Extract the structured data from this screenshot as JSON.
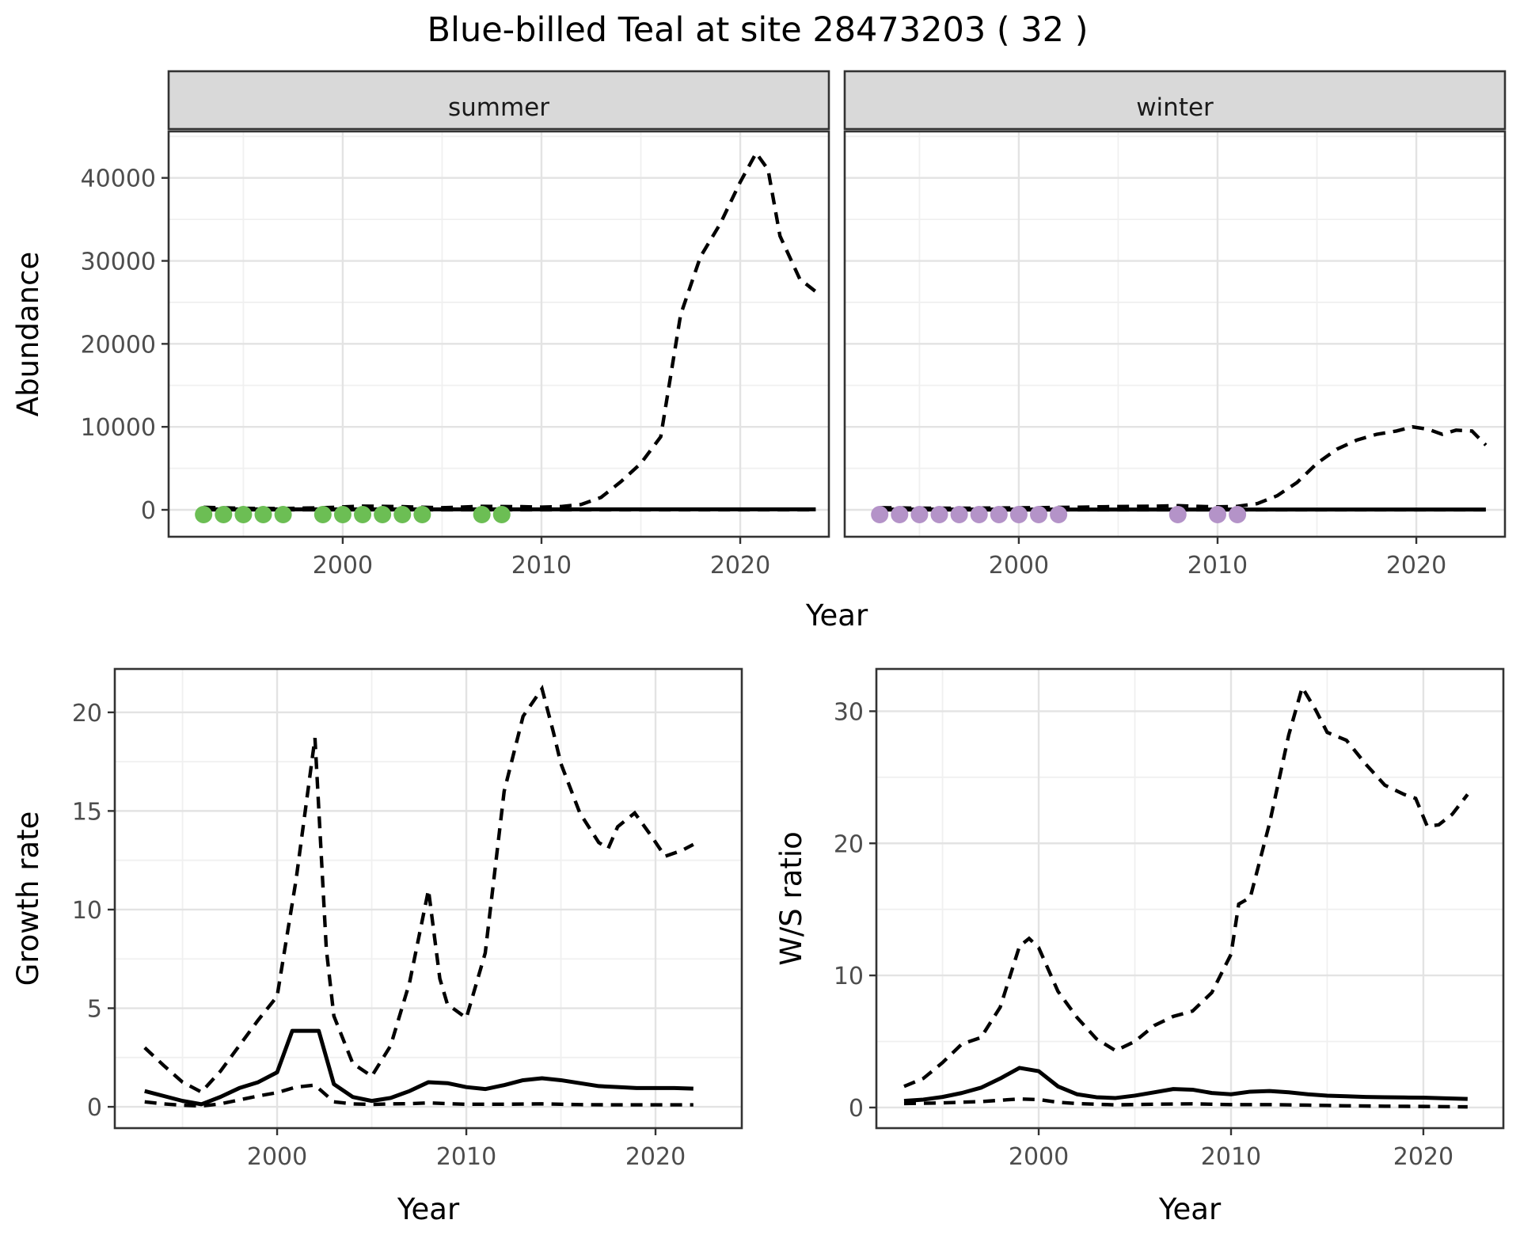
{
  "title": "Blue-billed Teal at site 28473203 ( 32 )",
  "colors": {
    "summer_point": "#6CBE54",
    "winter_point": "#B493C8",
    "line": "#000000",
    "panel_border": "#333333",
    "grid_major": "#E3E3E3",
    "grid_minor": "#F0F0F0",
    "strip_bg": "#D9D9D9",
    "tick_text": "#4D4D4D"
  },
  "chart_data": {
    "type": "line",
    "title": "Blue-billed Teal at site 28473203 ( 32 )",
    "top": {
      "xlabel": "Year",
      "ylabel": "Abundance",
      "x_major": [
        2000,
        2010,
        2020
      ],
      "x_minor": [
        1995,
        2005,
        2015
      ],
      "y_major": [
        0,
        10000,
        20000,
        30000,
        40000
      ],
      "y_minor": [
        5000,
        15000,
        25000,
        35000,
        45000
      ],
      "xlim": [
        1991.24,
        2024.46
      ],
      "ylim": [
        -3244,
        45600
      ],
      "legend": "none",
      "facets": [
        {
          "label": "summer",
          "point_color": "#6CBE54",
          "observed_years": [
            1993,
            1994,
            1995,
            1996,
            1997,
            1999,
            2000,
            2001,
            2002,
            2003,
            2004,
            2007,
            2008
          ],
          "observed_values": [
            0,
            0,
            0,
            0,
            0,
            0,
            0,
            0,
            0,
            0,
            0,
            0,
            0
          ],
          "fit_solid": [
            [
              1993,
              60
            ],
            [
              2023.8,
              60
            ]
          ],
          "ci_lower": [
            [
              1993,
              10
            ],
            [
              2023.8,
              10
            ]
          ],
          "ci_upper": [
            [
              1993,
              300
            ],
            [
              1995,
              180
            ],
            [
              1997,
              160
            ],
            [
              1999,
              250
            ],
            [
              2001,
              450
            ],
            [
              2003,
              380
            ],
            [
              2005,
              250
            ],
            [
              2007,
              420
            ],
            [
              2009,
              380
            ],
            [
              2010,
              330
            ],
            [
              2011,
              400
            ],
            [
              2012,
              650
            ],
            [
              2013,
              1500
            ],
            [
              2014,
              3400
            ],
            [
              2015,
              5600
            ],
            [
              2016,
              8800
            ],
            [
              2017,
              23500
            ],
            [
              2018,
              30500
            ],
            [
              2019,
              34500
            ],
            [
              2020,
              39500
            ],
            [
              2020.8,
              43000
            ],
            [
              2021.4,
              41000
            ],
            [
              2022,
              33000
            ],
            [
              2023,
              27800
            ],
            [
              2023.8,
              26300
            ]
          ]
        },
        {
          "label": "winter",
          "point_color": "#B493C8",
          "observed_years": [
            1993,
            1994,
            1995,
            1996,
            1997,
            1998,
            1999,
            2000,
            2001,
            2002,
            2008,
            2010,
            2011
          ],
          "observed_values": [
            0,
            0,
            0,
            0,
            0,
            0,
            0,
            0,
            0,
            0,
            0,
            0,
            0
          ],
          "fit_solid": [
            [
              1993,
              40
            ],
            [
              2023.5,
              40
            ]
          ],
          "ci_lower": [
            [
              1993,
              5
            ],
            [
              2023.5,
              5
            ]
          ],
          "ci_upper": [
            [
              1993,
              260
            ],
            [
              1995,
              200
            ],
            [
              1997,
              190
            ],
            [
              1999,
              220
            ],
            [
              2001,
              260
            ],
            [
              2003,
              320
            ],
            [
              2005,
              400
            ],
            [
              2007,
              450
            ],
            [
              2008,
              500
            ],
            [
              2009,
              420
            ],
            [
              2010,
              360
            ],
            [
              2011,
              420
            ],
            [
              2012,
              750
            ],
            [
              2013,
              1700
            ],
            [
              2014,
              3300
            ],
            [
              2015,
              5600
            ],
            [
              2016,
              7300
            ],
            [
              2017,
              8400
            ],
            [
              2018,
              9100
            ],
            [
              2019,
              9500
            ],
            [
              2019.8,
              10000
            ],
            [
              2020.6,
              9700
            ],
            [
              2021.3,
              9100
            ],
            [
              2022,
              9600
            ],
            [
              2022.8,
              9500
            ],
            [
              2023.5,
              7800
            ]
          ]
        }
      ]
    },
    "growth": {
      "xlabel": "Year",
      "ylabel": "Growth rate",
      "x_major": [
        2000,
        2010,
        2020
      ],
      "x_minor": [
        1995,
        2005,
        2015
      ],
      "y_major": [
        0,
        5,
        10,
        15,
        20
      ],
      "y_minor": [
        2.5,
        7.5,
        12.5,
        17.5
      ],
      "xlim": [
        1991.42,
        2024.56
      ],
      "ylim": [
        -1.08,
        22.2
      ],
      "fit_solid": [
        [
          1993,
          0.8
        ],
        [
          1994,
          0.55
        ],
        [
          1995,
          0.3
        ],
        [
          1996,
          0.13
        ],
        [
          1997,
          0.5
        ],
        [
          1998,
          0.95
        ],
        [
          1999,
          1.25
        ],
        [
          2000,
          1.75
        ],
        [
          2000.8,
          3.85
        ],
        [
          2002.2,
          3.85
        ],
        [
          2003,
          1.15
        ],
        [
          2004,
          0.5
        ],
        [
          2005,
          0.3
        ],
        [
          2006,
          0.45
        ],
        [
          2007,
          0.8
        ],
        [
          2008,
          1.25
        ],
        [
          2009,
          1.2
        ],
        [
          2010,
          1.0
        ],
        [
          2011,
          0.9
        ],
        [
          2012,
          1.1
        ],
        [
          2013,
          1.35
        ],
        [
          2014,
          1.45
        ],
        [
          2015,
          1.35
        ],
        [
          2016,
          1.2
        ],
        [
          2017,
          1.05
        ],
        [
          2018,
          1.0
        ],
        [
          2019,
          0.95
        ],
        [
          2020,
          0.95
        ],
        [
          2021,
          0.95
        ],
        [
          2022,
          0.92
        ]
      ],
      "ci_lower": [
        [
          1993,
          0.25
        ],
        [
          1994,
          0.15
        ],
        [
          1995,
          0.08
        ],
        [
          1996,
          0.04
        ],
        [
          1997,
          0.15
        ],
        [
          1998,
          0.35
        ],
        [
          1999,
          0.55
        ],
        [
          2000,
          0.72
        ],
        [
          2001,
          1.0
        ],
        [
          2002,
          1.1
        ],
        [
          2003,
          0.25
        ],
        [
          2004,
          0.15
        ],
        [
          2005,
          0.12
        ],
        [
          2006,
          0.15
        ],
        [
          2007,
          0.16
        ],
        [
          2008,
          0.2
        ],
        [
          2009,
          0.16
        ],
        [
          2010,
          0.13
        ],
        [
          2012,
          0.13
        ],
        [
          2014,
          0.15
        ],
        [
          2016,
          0.11
        ],
        [
          2018,
          0.1
        ],
        [
          2020,
          0.1
        ],
        [
          2022,
          0.1
        ]
      ],
      "ci_upper": [
        [
          1993,
          3.0
        ],
        [
          1994,
          2.1
        ],
        [
          1995,
          1.25
        ],
        [
          1996,
          0.75
        ],
        [
          1997,
          1.8
        ],
        [
          1998,
          3.1
        ],
        [
          1999,
          4.4
        ],
        [
          2000,
          5.6
        ],
        [
          2001,
          11.5
        ],
        [
          2002,
          18.7
        ],
        [
          2002.6,
          8.0
        ],
        [
          2003,
          4.6
        ],
        [
          2004,
          2.2
        ],
        [
          2005,
          1.55
        ],
        [
          2006,
          3.1
        ],
        [
          2007,
          6.3
        ],
        [
          2008,
          11.0
        ],
        [
          2008.6,
          6.5
        ],
        [
          2009,
          5.2
        ],
        [
          2010,
          4.5
        ],
        [
          2011,
          7.8
        ],
        [
          2012,
          16.0
        ],
        [
          2013,
          19.8
        ],
        [
          2014,
          21.2
        ],
        [
          2014.6,
          19.0
        ],
        [
          2015,
          17.4
        ],
        [
          2016,
          14.9
        ],
        [
          2017,
          13.4
        ],
        [
          2017.5,
          13.1
        ],
        [
          2018,
          14.2
        ],
        [
          2018.9,
          14.9
        ],
        [
          2019.8,
          13.7
        ],
        [
          2020.5,
          12.7
        ],
        [
          2021.4,
          13.0
        ],
        [
          2022,
          13.3
        ]
      ]
    },
    "ws": {
      "xlabel": "Year",
      "ylabel": "W/S ratio",
      "x_major": [
        2000,
        2010,
        2020
      ],
      "x_minor": [
        1995,
        2005,
        2015
      ],
      "y_major": [
        0,
        10,
        20,
        30
      ],
      "y_minor": [
        5,
        15,
        25
      ],
      "xlim": [
        1991.56,
        2024.16
      ],
      "ylim": [
        -1.56,
        33.2
      ],
      "fit_solid": [
        [
          1993,
          0.5
        ],
        [
          1994,
          0.6
        ],
        [
          1995,
          0.8
        ],
        [
          1996,
          1.1
        ],
        [
          1997,
          1.5
        ],
        [
          1998,
          2.2
        ],
        [
          1999,
          3.0
        ],
        [
          2000,
          2.75
        ],
        [
          2001,
          1.6
        ],
        [
          2002,
          1.0
        ],
        [
          2003,
          0.78
        ],
        [
          2004,
          0.72
        ],
        [
          2005,
          0.9
        ],
        [
          2006,
          1.15
        ],
        [
          2007,
          1.4
        ],
        [
          2008,
          1.35
        ],
        [
          2009,
          1.1
        ],
        [
          2010,
          1.0
        ],
        [
          2011,
          1.2
        ],
        [
          2012,
          1.25
        ],
        [
          2013,
          1.15
        ],
        [
          2014,
          1.0
        ],
        [
          2015,
          0.9
        ],
        [
          2016,
          0.85
        ],
        [
          2017,
          0.8
        ],
        [
          2018,
          0.78
        ],
        [
          2019,
          0.76
        ],
        [
          2020,
          0.75
        ],
        [
          2021,
          0.7
        ],
        [
          2022.3,
          0.65
        ]
      ],
      "ci_lower": [
        [
          1993,
          0.3
        ],
        [
          1995,
          0.35
        ],
        [
          1997,
          0.45
        ],
        [
          1999,
          0.65
        ],
        [
          2000,
          0.6
        ],
        [
          2001,
          0.4
        ],
        [
          2002,
          0.3
        ],
        [
          2003,
          0.25
        ],
        [
          2004,
          0.2
        ],
        [
          2006,
          0.25
        ],
        [
          2008,
          0.28
        ],
        [
          2010,
          0.22
        ],
        [
          2012,
          0.22
        ],
        [
          2014,
          0.18
        ],
        [
          2016,
          0.13
        ],
        [
          2018,
          0.1
        ],
        [
          2020,
          0.08
        ],
        [
          2022.3,
          0.05
        ]
      ],
      "ci_upper": [
        [
          1993,
          1.6
        ],
        [
          1994,
          2.2
        ],
        [
          1995,
          3.4
        ],
        [
          1996,
          4.8
        ],
        [
          1997,
          5.3
        ],
        [
          1998,
          7.6
        ],
        [
          1999,
          12.2
        ],
        [
          1999.5,
          12.8
        ],
        [
          2000,
          12.1
        ],
        [
          2001,
          8.8
        ],
        [
          2002,
          6.8
        ],
        [
          2003,
          5.2
        ],
        [
          2004,
          4.3
        ],
        [
          2005,
          5.0
        ],
        [
          2006,
          6.2
        ],
        [
          2007,
          6.9
        ],
        [
          2008,
          7.3
        ],
        [
          2009,
          8.7
        ],
        [
          2010,
          11.6
        ],
        [
          2010.4,
          15.4
        ],
        [
          2011,
          15.9
        ],
        [
          2012,
          21.5
        ],
        [
          2013,
          28.2
        ],
        [
          2013.7,
          31.8
        ],
        [
          2014.4,
          30.1
        ],
        [
          2015,
          28.4
        ],
        [
          2016,
          27.8
        ],
        [
          2017,
          26.0
        ],
        [
          2018,
          24.4
        ],
        [
          2019,
          23.7
        ],
        [
          2019.6,
          23.4
        ],
        [
          2020.2,
          21.3
        ],
        [
          2020.8,
          21.4
        ],
        [
          2021.5,
          22.2
        ],
        [
          2022.3,
          23.7
        ]
      ]
    }
  }
}
